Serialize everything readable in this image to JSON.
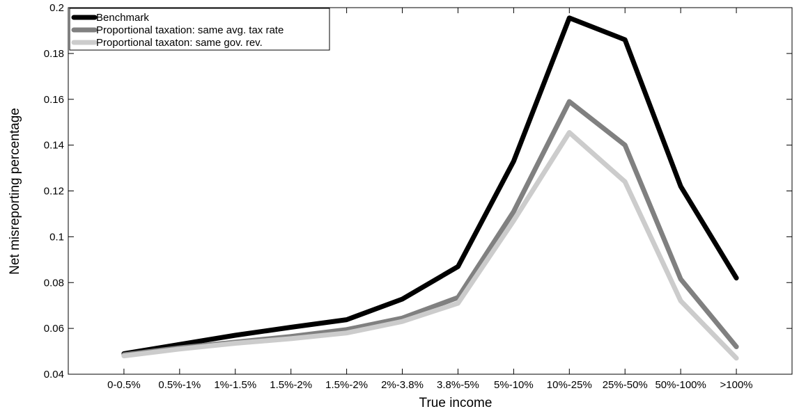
{
  "chart_data": {
    "type": "line",
    "title": "",
    "xlabel": "True income",
    "ylabel": "Net misreporting percentage",
    "categories": [
      "0-0.5%",
      "0.5%-1%",
      "1%-1.5%",
      "1.5%-2%",
      "1.5%-2%",
      "2%-3.8%",
      "3.8%-5%",
      "5%-10%",
      "10%-25%",
      "25%-50%",
      "50%-100%",
      ">100%"
    ],
    "ylim": [
      0.04,
      0.2
    ],
    "yticks": [
      0.04,
      0.06,
      0.08,
      0.1,
      0.12,
      0.14,
      0.16,
      0.18,
      0.2
    ],
    "ytick_labels": [
      "0.04",
      "0.06",
      "0.08",
      "0.1",
      "0.12",
      "0.14",
      "0.16",
      "0.18",
      "0.2"
    ],
    "grid": false,
    "legend_position": "top-left",
    "series": [
      {
        "name": "Benchmark",
        "color": "#000000",
        "values": [
          0.049,
          0.053,
          0.057,
          0.0605,
          0.0638,
          0.0728,
          0.087,
          0.133,
          0.1955,
          0.186,
          0.122,
          0.082
        ]
      },
      {
        "name": "Proportional taxation: same avg. tax rate",
        "color": "#808080",
        "values": [
          0.0485,
          0.0515,
          0.054,
          0.0565,
          0.0595,
          0.0645,
          0.0735,
          0.111,
          0.159,
          0.14,
          0.0815,
          0.052
        ]
      },
      {
        "name": "Proportional taxaton: same gov. rev.",
        "color": "#cccccc",
        "values": [
          0.048,
          0.051,
          0.0535,
          0.0555,
          0.058,
          0.063,
          0.071,
          0.107,
          0.1455,
          0.124,
          0.072,
          0.047
        ]
      }
    ]
  }
}
